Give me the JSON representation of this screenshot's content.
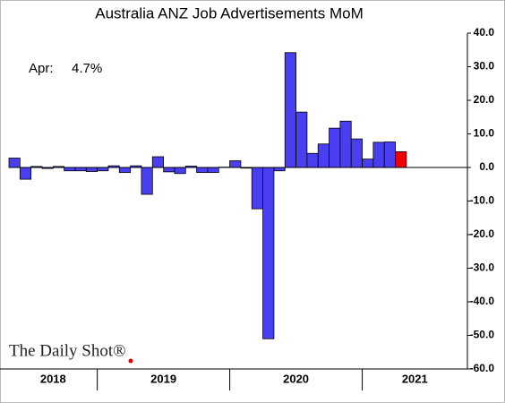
{
  "chart_data": {
    "type": "bar",
    "title": "Australia ANZ Job Advertisements MoM",
    "annotation": {
      "label": "Apr:",
      "value_label": "4.7%"
    },
    "watermark": "The Daily Shot®",
    "categories": [
      null,
      null,
      null,
      null,
      null,
      null,
      null,
      null,
      null,
      null,
      null,
      null,
      null,
      null,
      null,
      null,
      null,
      null,
      null,
      null,
      null,
      null,
      null,
      null,
      null,
      null,
      null,
      null,
      null,
      null,
      null,
      null,
      null,
      null,
      null,
      null
    ],
    "values": [
      2.8,
      -3.5,
      0.3,
      -0.3,
      0.3,
      -1.0,
      -1.0,
      -1.2,
      -1.0,
      0.5,
      -1.5,
      0.5,
      -8.0,
      3.2,
      -1.3,
      -1.8,
      0.4,
      -1.5,
      -1.5,
      0.1,
      2.0,
      -0.2,
      -12.3,
      -51.0,
      -1.0,
      34.2,
      16.5,
      4.2,
      7.0,
      11.7,
      13.8,
      8.5,
      2.5,
      7.5,
      7.6,
      4.7
    ],
    "color": "#4a3ff0",
    "highlight_color": "#ee0000",
    "year_labels": [
      "2018",
      "2019",
      "2020",
      "2021"
    ],
    "ylim": [
      -60,
      40
    ],
    "yticks": [
      {
        "value": -60,
        "label": "-60.0"
      },
      {
        "value": -50,
        "label": "-50.0"
      },
      {
        "value": -40,
        "label": "-40.0"
      },
      {
        "value": -30,
        "label": "-30.0"
      },
      {
        "value": -20,
        "label": "-20.0"
      },
      {
        "value": -10,
        "label": "-10.0"
      },
      {
        "value": 0,
        "label": "0.0"
      },
      {
        "value": 10,
        "label": "10.0"
      },
      {
        "value": 20,
        "label": "20.0"
      },
      {
        "value": 30,
        "label": "30.0"
      },
      {
        "value": 40,
        "label": "40.0"
      }
    ]
  }
}
